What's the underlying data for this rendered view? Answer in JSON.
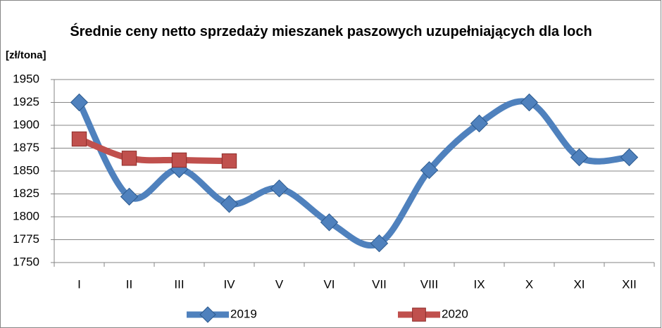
{
  "chart_data": {
    "type": "line",
    "title": "Średnie ceny netto sprzedaży mieszanek paszowych uzupełniających dla loch",
    "y_label": "[zł/tona]",
    "categories": [
      "I",
      "II",
      "III",
      "IV",
      "V",
      "VI",
      "VII",
      "VIII",
      "IX",
      "X",
      "XI",
      "XII"
    ],
    "series": [
      {
        "name": "2019",
        "color": "#4f81bd",
        "marker": "diamond",
        "values": [
          1925,
          1822,
          1852,
          1814,
          1831,
          1794,
          1771,
          1851,
          1902,
          1925,
          1865,
          1865
        ]
      },
      {
        "name": "2020",
        "color": "#c0504d",
        "marker": "square",
        "values": [
          1885,
          1864,
          1862,
          1861,
          null,
          null,
          null,
          null,
          null,
          null,
          null,
          null
        ]
      }
    ],
    "ylim": [
      1750,
      1950
    ],
    "yticks": [
      1750,
      1775,
      1800,
      1825,
      1850,
      1875,
      1900,
      1925,
      1950
    ],
    "grid": true,
    "smooth": true,
    "legend": "bottom"
  }
}
